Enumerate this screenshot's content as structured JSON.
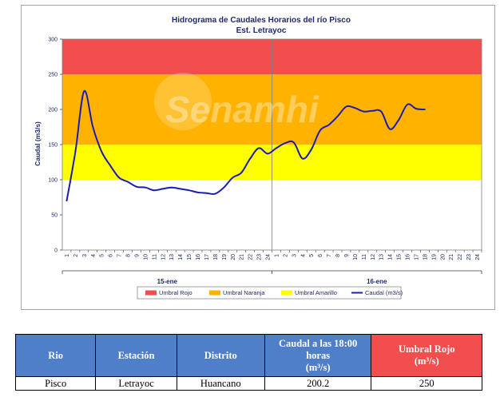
{
  "chart_data": {
    "type": "line",
    "title": "Hidrograma de Caudales Horarios del río Pisco",
    "subtitle": "Est. Letrayoc",
    "ylabel": "Caudal  (m3/s)",
    "ylim": [
      0,
      300
    ],
    "yticks": [
      0,
      50,
      100,
      150,
      200,
      250,
      300
    ],
    "hour_labels": [
      "1",
      "2",
      "3",
      "4",
      "5",
      "6",
      "7",
      "8",
      "9",
      "10",
      "11",
      "12",
      "13",
      "14",
      "15",
      "16",
      "17",
      "18",
      "19",
      "20",
      "21",
      "22",
      "23",
      "24",
      "1",
      "2",
      "3",
      "4",
      "5",
      "6",
      "7",
      "8",
      "9",
      "10",
      "11",
      "12",
      "13",
      "14",
      "15",
      "16",
      "17",
      "18",
      "19",
      "20",
      "21",
      "22",
      "23",
      "24"
    ],
    "day_labels": [
      "15-ene",
      "16-ene"
    ],
    "bands": [
      {
        "name": "Umbral Rojo",
        "from": 250,
        "to": 300,
        "color": "#f24e4e"
      },
      {
        "name": "Umbral Naranja",
        "from": 150,
        "to": 250,
        "color": "#ffb300"
      },
      {
        "name": "Umbral Amarillo",
        "from": 100,
        "to": 150,
        "color": "#ffff00"
      }
    ],
    "series": [
      {
        "name": "Caudal (m3/s)",
        "color": "#1c1cb4",
        "x": [
          1,
          2,
          3,
          4,
          5,
          6,
          7,
          8,
          9,
          10,
          11,
          12,
          13,
          14,
          15,
          16,
          17,
          18,
          19,
          20,
          21,
          22,
          23,
          24,
          25,
          26,
          27,
          28,
          29,
          30,
          31,
          32,
          33,
          34,
          35,
          36,
          37,
          38,
          39,
          40,
          41,
          42
        ],
        "values": [
          70,
          140,
          226,
          175,
          140,
          120,
          103,
          97,
          90,
          89,
          85,
          87,
          89,
          87,
          85,
          82,
          81,
          80,
          89,
          103,
          110,
          130,
          145,
          137,
          145,
          152,
          153,
          130,
          143,
          170,
          178,
          190,
          204,
          202,
          197,
          198,
          197,
          172,
          185,
          207,
          201,
          200
        ]
      }
    ],
    "grid": false,
    "legend_position": "bottom",
    "watermark": "Senamhi"
  },
  "table": {
    "headers": [
      "Rio",
      "Estación",
      "Distrito",
      "Caudal a las 18:00 horas",
      "Umbral Rojo"
    ],
    "header_units": [
      "",
      "",
      "",
      "(m³/s)",
      "(m³/s)"
    ],
    "row": [
      "Pisco",
      "Letrayoc",
      "Huancano",
      "200.2",
      "250"
    ]
  }
}
